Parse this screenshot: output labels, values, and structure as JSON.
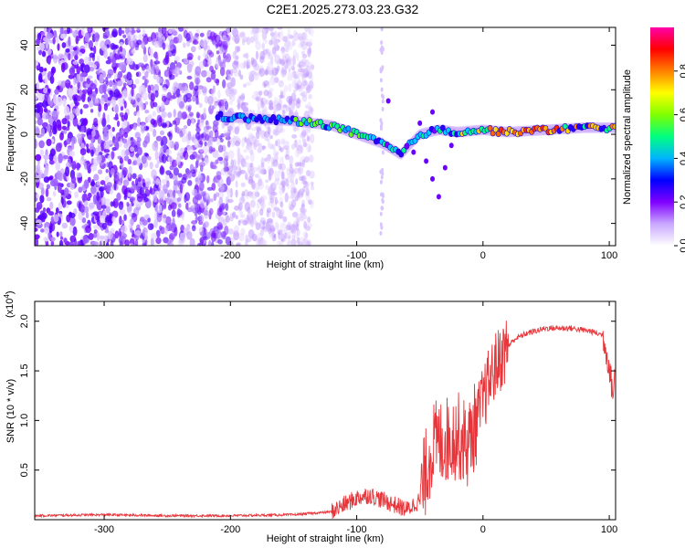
{
  "title": "C2E1.2025.273.03.23.G32",
  "chart_data": [
    {
      "type": "heatmap",
      "xlabel": "Height of straight line (km)",
      "ylabel": "Frequency (Hz)",
      "xlim": [
        -355,
        105
      ],
      "ylim": [
        -50,
        48
      ],
      "xticks": [
        -300,
        -200,
        -100,
        0,
        100
      ],
      "xtick_labels": [
        "-300",
        "-200",
        "-100",
        "0",
        "100"
      ],
      "yticks": [
        -40,
        -20,
        0,
        20,
        40
      ],
      "ytick_labels": [
        "-40",
        "-20",
        "0",
        "20",
        "40"
      ],
      "colorbar": {
        "label": "Normalized spectral amplitude",
        "range": [
          0,
          1
        ],
        "ticks": [
          0.0,
          0.2,
          0.4,
          0.6,
          0.8
        ],
        "tick_labels": [
          "0.0",
          "0.2",
          "0.4",
          "0.6",
          "0.8"
        ],
        "colors": [
          "#ffffff",
          "#c9a8ff",
          "#8000ff",
          "#0000ff",
          "#00b4ff",
          "#00ff80",
          "#80ff00",
          "#ffff00",
          "#ff8000",
          "#ff0000",
          "#ff00aa"
        ]
      },
      "noise_region_x": [
        -355,
        -135
      ],
      "ridge": [
        {
          "x": -210,
          "y": 8
        },
        {
          "x": -180,
          "y": 7
        },
        {
          "x": -150,
          "y": 6
        },
        {
          "x": -120,
          "y": 4
        },
        {
          "x": -100,
          "y": 0
        },
        {
          "x": -80,
          "y": -4
        },
        {
          "x": -65,
          "y": -9
        },
        {
          "x": -50,
          "y": 0
        },
        {
          "x": -35,
          "y": 2
        },
        {
          "x": -20,
          "y": 1
        },
        {
          "x": 0,
          "y": 2
        },
        {
          "x": 20,
          "y": 1
        },
        {
          "x": 50,
          "y": 2
        },
        {
          "x": 80,
          "y": 3
        },
        {
          "x": 100,
          "y": 3
        }
      ]
    },
    {
      "type": "line",
      "xlabel": "Height of straight line (km)",
      "ylabel": "SNR (10 * v/v)",
      "scale_label": "(x10",
      "scale_exp": "4",
      "scale_close": ")",
      "xlim": [
        -355,
        105
      ],
      "ylim": [
        0,
        2.2
      ],
      "xticks": [
        -300,
        -200,
        -100,
        0,
        100
      ],
      "xtick_labels": [
        "-300",
        "-200",
        "-100",
        "0",
        "100"
      ],
      "yticks": [
        0.5,
        1.0,
        1.5,
        2.0
      ],
      "ytick_labels": [
        "0.5",
        "1.0",
        "1.5",
        "2.0"
      ],
      "line_color": "#e8353a",
      "series_envelope": [
        {
          "x": -355,
          "y": 0.04
        },
        {
          "x": -300,
          "y": 0.05
        },
        {
          "x": -250,
          "y": 0.04
        },
        {
          "x": -200,
          "y": 0.04
        },
        {
          "x": -150,
          "y": 0.05
        },
        {
          "x": -120,
          "y": 0.08
        },
        {
          "x": -110,
          "y": 0.15
        },
        {
          "x": -100,
          "y": 0.22
        },
        {
          "x": -90,
          "y": 0.25
        },
        {
          "x": -80,
          "y": 0.2
        },
        {
          "x": -70,
          "y": 0.15
        },
        {
          "x": -60,
          "y": 0.1
        },
        {
          "x": -50,
          "y": 0.2
        },
        {
          "x": -45,
          "y": 0.5
        },
        {
          "x": -40,
          "y": 0.75
        },
        {
          "x": -30,
          "y": 0.8
        },
        {
          "x": -20,
          "y": 0.85
        },
        {
          "x": -12,
          "y": 0.75
        },
        {
          "x": -5,
          "y": 1.0
        },
        {
          "x": 0,
          "y": 1.2
        },
        {
          "x": 5,
          "y": 1.4
        },
        {
          "x": 10,
          "y": 1.55
        },
        {
          "x": 15,
          "y": 1.65
        },
        {
          "x": 20,
          "y": 1.75
        },
        {
          "x": 25,
          "y": 1.82
        },
        {
          "x": 35,
          "y": 1.88
        },
        {
          "x": 50,
          "y": 1.93
        },
        {
          "x": 70,
          "y": 1.93
        },
        {
          "x": 85,
          "y": 1.9
        },
        {
          "x": 95,
          "y": 1.86
        },
        {
          "x": 100,
          "y": 1.55
        },
        {
          "x": 103,
          "y": 1.25
        },
        {
          "x": 105,
          "y": 1.55
        }
      ]
    }
  ]
}
